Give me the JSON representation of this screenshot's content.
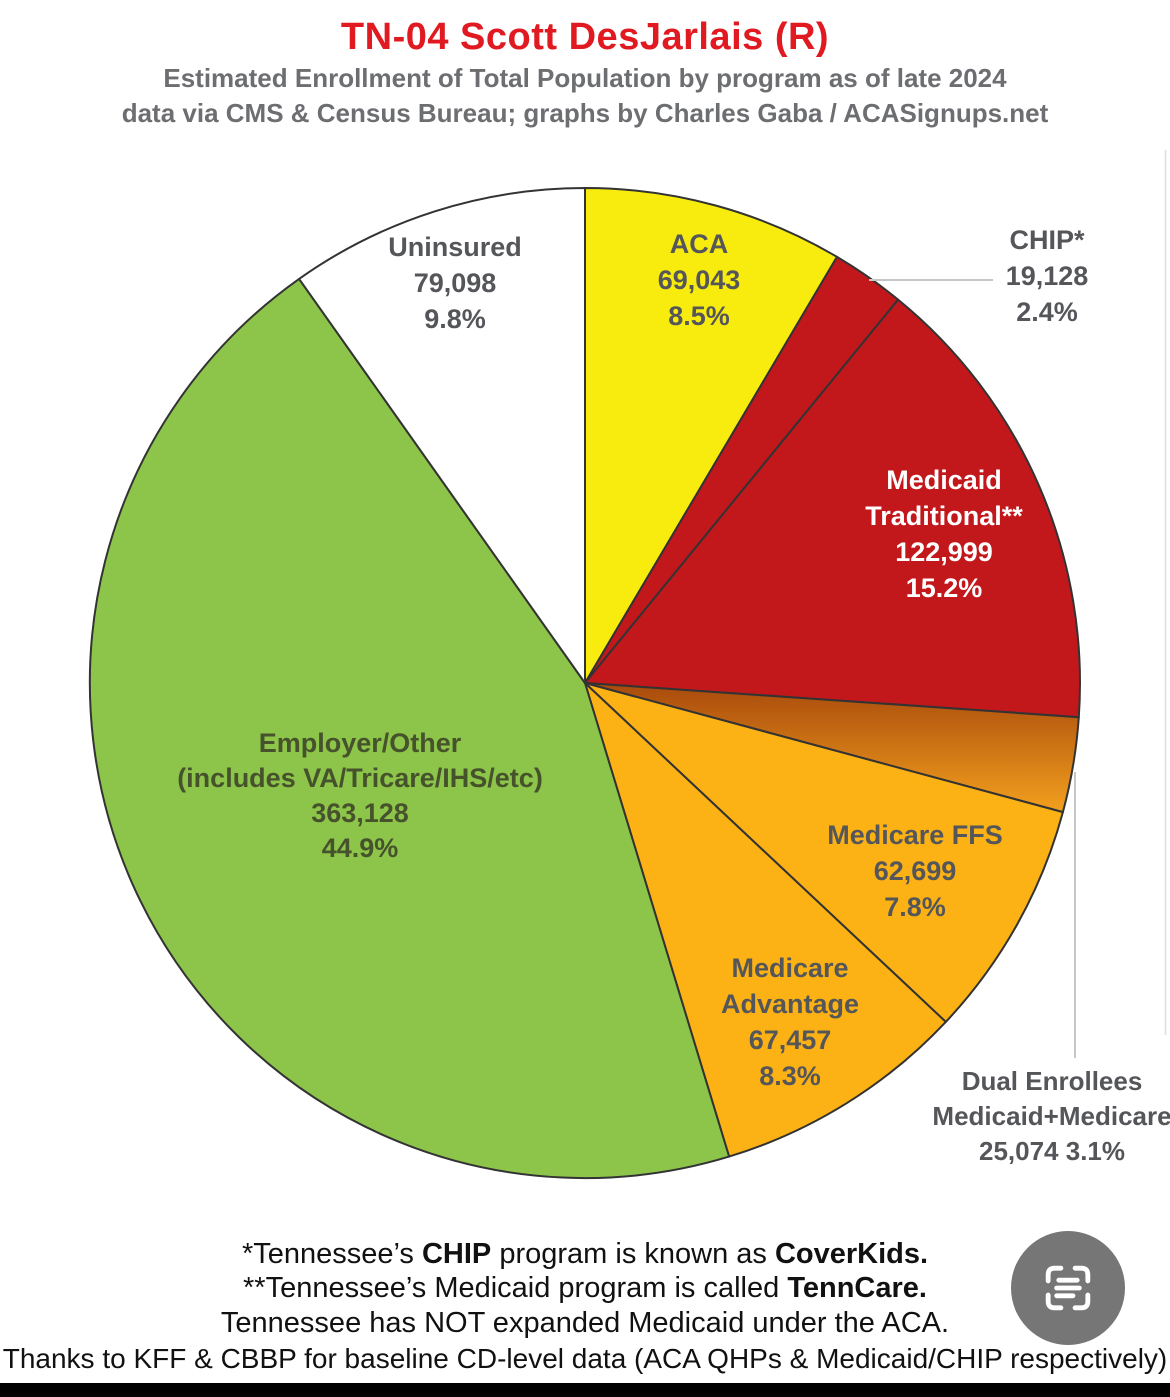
{
  "header": {
    "title": "TN-04 Scott DesJarlais (R)",
    "subtitle_line1": "Estimated Enrollment of Total Population by program as of late 2024",
    "subtitle_line2": "data via CMS & Census Bureau; graphs by Charles Gaba / ACASignups.net"
  },
  "colors": {
    "title_red": "#e01a20",
    "subtitle_gray": "#6d6e71",
    "slice_label_gray": "#55565a",
    "employer_label_green": "#46522c",
    "slice_outline": "#333333"
  },
  "chart_data": {
    "type": "pie",
    "title": "TN-04 Scott DesJarlais (R)",
    "subtitle": "Estimated Enrollment of Total Population by program as of late 2024",
    "source": "data via CMS & Census Bureau; graphs by Charles Gaba / ACASignups.net",
    "direction": "clockwise",
    "start_angle_deg": 0,
    "stroke": "#333333",
    "series": [
      {
        "name": "ACA",
        "value": 69043,
        "pct": 8.5,
        "fill": "#f8ec0e"
      },
      {
        "name": "CHIP*",
        "value": 19128,
        "pct": 2.4,
        "fill": "#c2181c"
      },
      {
        "name": "Medicaid Traditional**",
        "value": 122999,
        "pct": 15.2,
        "fill": "#c2181c"
      },
      {
        "name": "Dual Enrollees Medicaid+Medicare",
        "value": 25074,
        "pct": 3.1,
        "fill": "#d9731a",
        "fill_gradient": [
          "#a8490c",
          "#f2a01e"
        ]
      },
      {
        "name": "Medicare FFS",
        "value": 62699,
        "pct": 7.8,
        "fill": "#fcb214"
      },
      {
        "name": "Medicare Advantage",
        "value": 67457,
        "pct": 8.3,
        "fill": "#fcb214"
      },
      {
        "name": "Employer/Other (includes VA/Tricare/IHS/etc)",
        "value": 363128,
        "pct": 44.9,
        "fill": "#8dc54a"
      },
      {
        "name": "Uninsured",
        "value": 79098,
        "pct": 9.8,
        "fill": "#ffffff"
      }
    ]
  },
  "slice_labels": {
    "uninsured": {
      "lines": [
        "Uninsured",
        "79,098",
        "9.8%"
      ]
    },
    "aca": {
      "lines": [
        "ACA",
        "69,043",
        "8.5%"
      ]
    },
    "chip": {
      "lines": [
        "CHIP*",
        "19,128",
        "2.4%"
      ]
    },
    "medicaid": {
      "lines": [
        "Medicaid",
        "Traditional**",
        "122,999",
        "15.2%"
      ]
    },
    "employer": {
      "lines": [
        "Employer/Other",
        "(includes VA/Tricare/IHS/etc)",
        "363,128",
        "44.9%"
      ]
    },
    "ffs": {
      "lines": [
        "Medicare FFS",
        "62,699",
        "7.8%"
      ]
    },
    "advantage": {
      "lines": [
        "Medicare",
        "Advantage",
        "67,457",
        "8.3%"
      ]
    },
    "dual": {
      "lines": [
        "Dual Enrollees",
        "Medicaid+Medicare",
        "25,074 3.1%"
      ]
    }
  },
  "footnotes": {
    "line1": [
      {
        "t": "*Tennessee’s ",
        "b": 0
      },
      {
        "t": "CHIP",
        "b": 1
      },
      {
        "t": " program is known as ",
        "b": 0
      },
      {
        "t": "CoverKids.",
        "b": 1
      }
    ],
    "line2": [
      {
        "t": "**Tennessee’s Medicaid program is called ",
        "b": 0
      },
      {
        "t": "TennCare.",
        "b": 1
      }
    ],
    "line3": [
      {
        "t": "Tennessee has NOT expanded Medicaid under the ACA.",
        "b": 0
      }
    ],
    "line4": [
      {
        "t": "Thanks to KFF & CBBP for baseline CD-level data (ACA QHPs & Medicaid/CHIP respectively)",
        "b": 0
      }
    ]
  }
}
